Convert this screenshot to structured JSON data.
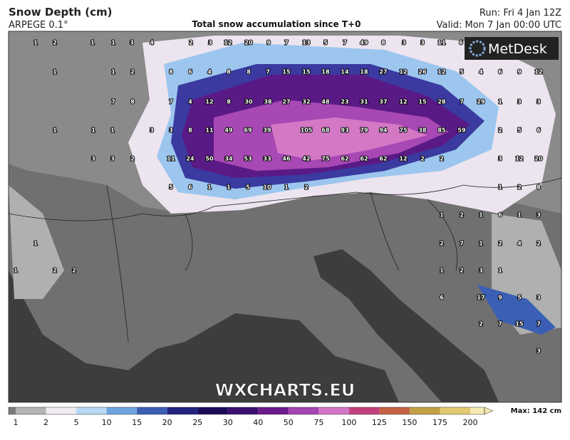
{
  "header": {
    "title": "Snow Depth (cm)",
    "model": "ARPEGE 0.1°",
    "subtitle": "Total snow accumulation since T+0",
    "run": "Run: Fri 4 Jan 12Z",
    "valid": "Valid: Mon 7 Jan 00:00 UTC"
  },
  "logo": "MetDesk",
  "watermark": "WXCHARTS.EU",
  "map_labels": [
    1,
    2,
    1,
    1,
    3,
    4,
    2,
    3,
    12,
    20,
    9,
    7,
    13,
    5,
    7,
    49,
    8,
    3,
    3,
    11,
    6,
    1,
    1,
    2,
    8,
    6,
    4,
    8,
    8,
    7,
    15,
    15,
    18,
    14,
    18,
    27,
    12,
    26,
    12,
    5,
    4,
    6,
    9,
    12,
    7,
    8,
    7,
    4,
    12,
    8,
    30,
    38,
    27,
    32,
    48,
    23,
    31,
    37,
    12,
    15,
    28,
    7,
    29,
    1,
    3,
    3,
    1,
    1,
    1,
    3,
    3,
    8,
    11,
    49,
    69,
    39,
    105,
    68,
    93,
    79,
    94,
    75,
    38,
    85,
    59,
    2,
    5,
    6,
    3,
    3,
    2,
    11,
    24,
    50,
    34,
    53,
    33,
    46,
    42,
    75,
    62,
    62,
    62,
    12,
    2,
    2,
    3,
    12,
    20,
    5,
    6,
    1,
    1,
    5,
    10,
    1,
    2,
    1,
    2,
    8,
    1,
    2,
    1,
    6,
    1,
    3,
    2,
    7,
    1,
    2,
    4,
    2,
    1,
    1,
    2,
    2,
    1,
    2,
    3,
    1,
    6,
    17,
    9,
    5,
    3,
    2,
    7,
    15,
    7,
    3
  ],
  "legend": {
    "labels": [
      1,
      2,
      5,
      10,
      15,
      20,
      25,
      30,
      40,
      50,
      75,
      100,
      125,
      150,
      175,
      200
    ],
    "colors": [
      "#7a7a7a",
      "#b4b4b4",
      "#f2eaf2",
      "#b8d8f4",
      "#6ea6df",
      "#3b5fb4",
      "#23237f",
      "#1c0a58",
      "#3b1070",
      "#6c1a8c",
      "#a345b3",
      "#d275c6",
      "#c2407e",
      "#c46244",
      "#c2a045",
      "#e2c970",
      "#f6e9b4"
    ],
    "max": "Max: 142 cm"
  }
}
